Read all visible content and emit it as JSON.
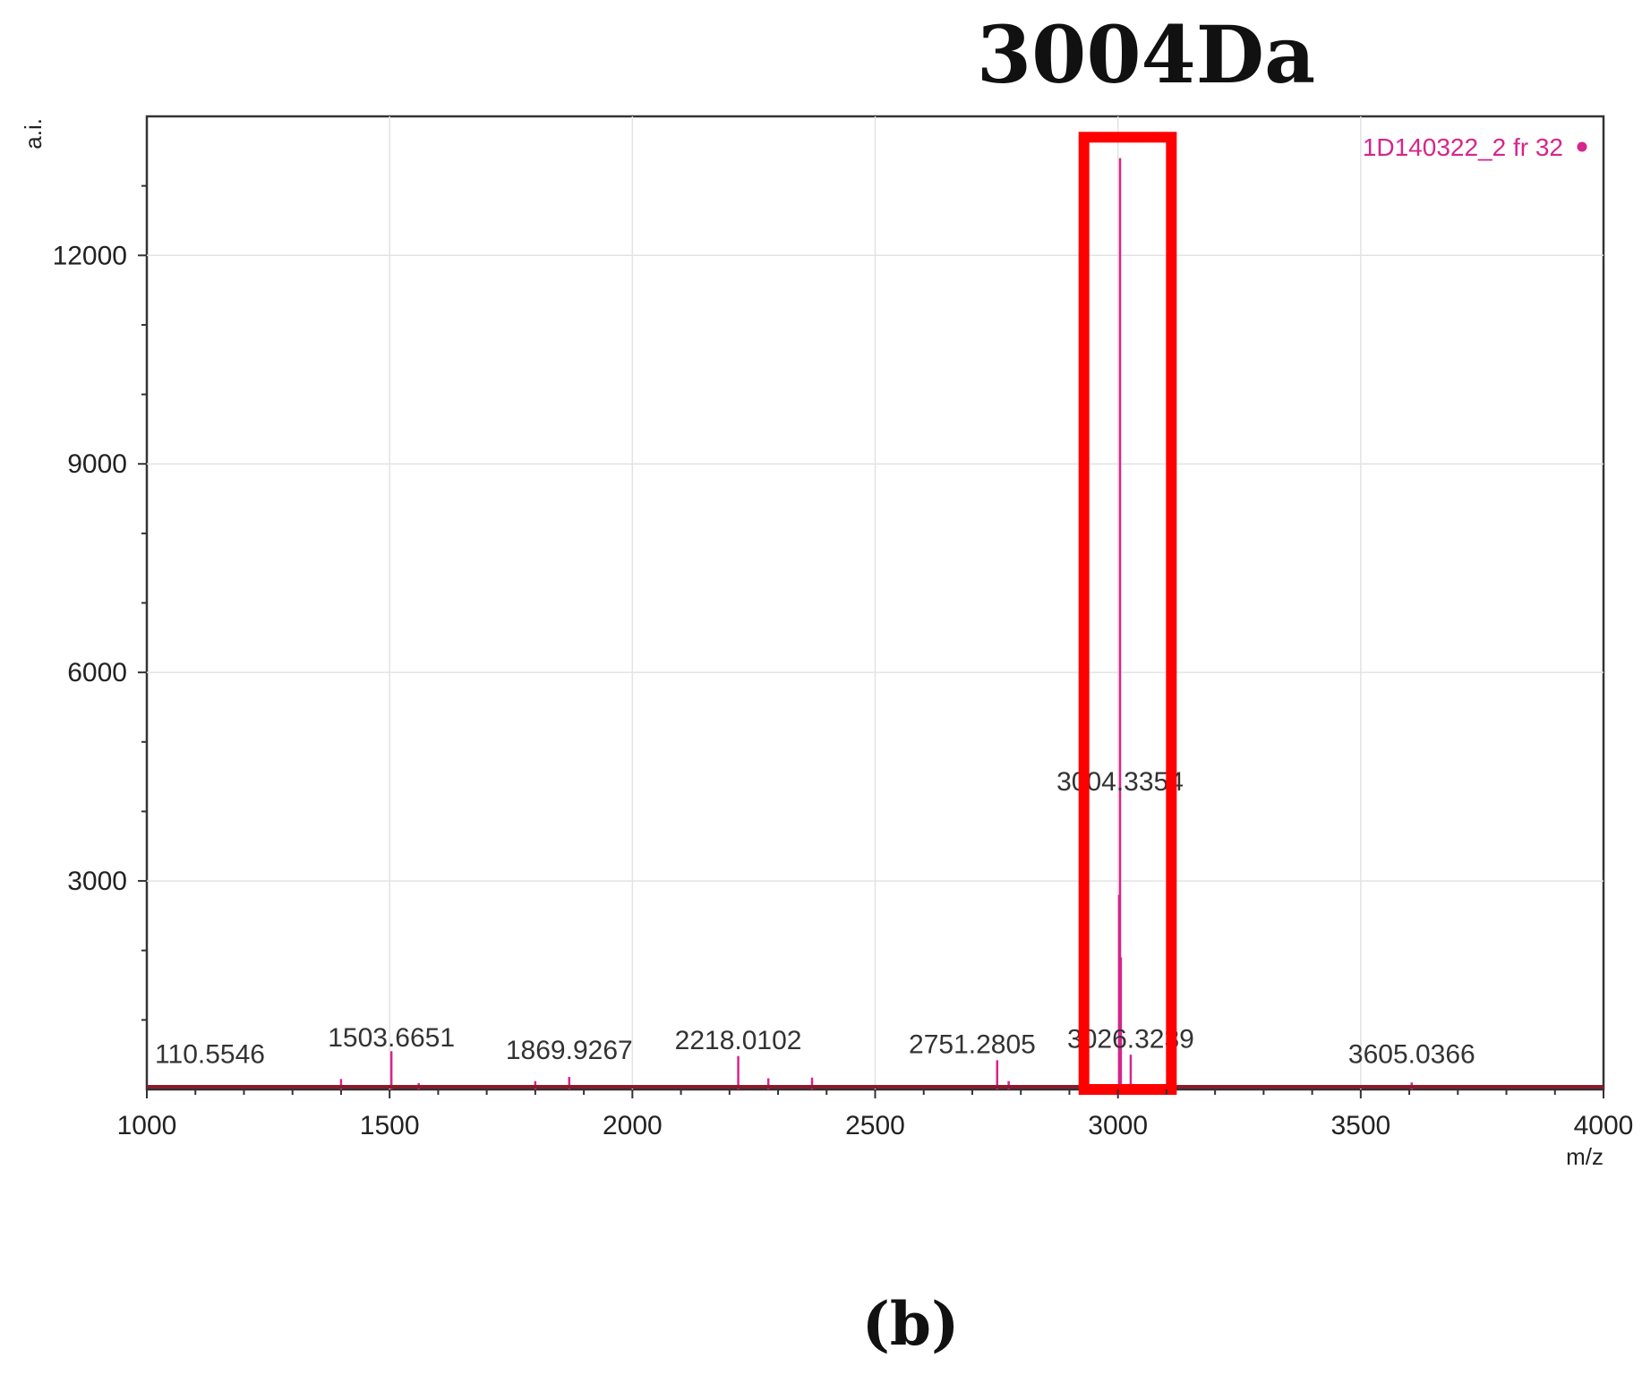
{
  "figure": {
    "title": "3004Da",
    "panel_label": "(b)"
  },
  "chart_data": {
    "type": "line",
    "title": "3004Da",
    "xlabel": "m/z",
    "ylabel": "a.i.",
    "xlim": [
      1000,
      4000
    ],
    "ylim": [
      0,
      14000
    ],
    "x_ticks": [
      1000,
      1500,
      2000,
      2500,
      3000,
      3500,
      4000
    ],
    "x_tick_labels": [
      "1000",
      "1500",
      "2000",
      "2500",
      "3000",
      "3500",
      "4000"
    ],
    "y_ticks": [
      3000,
      6000,
      9000,
      12000
    ],
    "y_tick_labels": [
      "3000",
      "6000",
      "9000",
      "12000"
    ],
    "grid": true,
    "legend_position": "top-right",
    "series": [
      {
        "name": "1D140322_2 fr 32",
        "color": "#d6258c",
        "peaks": [
          {
            "x": 1400,
            "y": 150
          },
          {
            "x": 1503.6651,
            "y": 550
          },
          {
            "x": 1560,
            "y": 90
          },
          {
            "x": 1800,
            "y": 120
          },
          {
            "x": 1869.9267,
            "y": 180
          },
          {
            "x": 2218.0102,
            "y": 480
          },
          {
            "x": 2280,
            "y": 160
          },
          {
            "x": 2370,
            "y": 170
          },
          {
            "x": 2751.2805,
            "y": 420
          },
          {
            "x": 2775,
            "y": 120
          },
          {
            "x": 3002.5,
            "y": 2800
          },
          {
            "x": 3004.3354,
            "y": 13400
          },
          {
            "x": 3006,
            "y": 1900
          },
          {
            "x": 3026.3239,
            "y": 500
          },
          {
            "x": 3605.0366,
            "y": 100
          }
        ]
      }
    ],
    "peak_labels": [
      {
        "text": "110.5546",
        "x": 1130,
        "y": 380
      },
      {
        "text": "1503.6651",
        "x": 1503.6651,
        "y": 620
      },
      {
        "text": "1869.9267",
        "x": 1869.9267,
        "y": 440
      },
      {
        "text": "2218.0102",
        "x": 2218.0102,
        "y": 580
      },
      {
        "text": "2751.2805",
        "x": 2700,
        "y": 520
      },
      {
        "text": "3026.3239",
        "x": 3026.3239,
        "y": 600
      },
      {
        "text": "3004.3354",
        "x": 3004.3354,
        "y": 4300
      },
      {
        "text": "3605.0366",
        "x": 3605.0366,
        "y": 380
      }
    ],
    "highlight": {
      "x_range": [
        2930,
        3110
      ],
      "y_range": [
        0,
        13700
      ],
      "color": "#ff0000"
    }
  }
}
